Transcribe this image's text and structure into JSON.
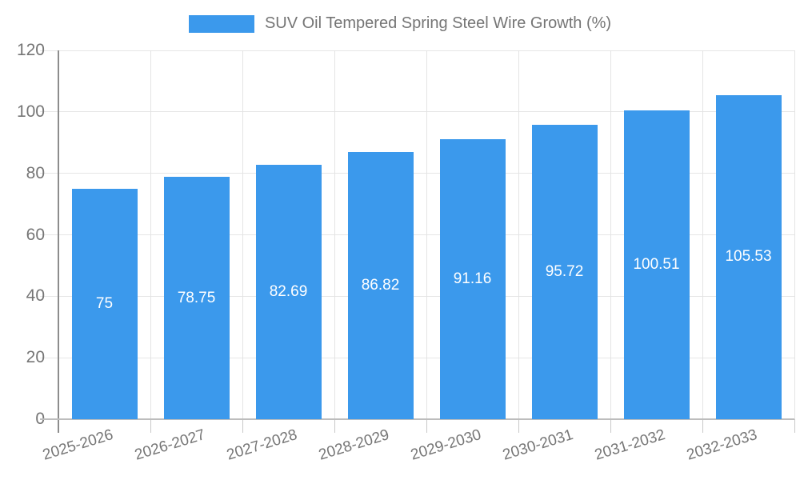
{
  "legend": {
    "series_label": "SUV Oil Tempered Spring Steel Wire Growth (%)",
    "swatch_color": "#3b99ec"
  },
  "chart_data": {
    "type": "bar",
    "title": "SUV Oil Tempered Spring Steel Wire Growth (%)",
    "categories": [
      "2025-2026",
      "2026-2027",
      "2027-2028",
      "2028-2029",
      "2029-2030",
      "2030-2031",
      "2031-2032",
      "2032-2033"
    ],
    "values": [
      75,
      78.75,
      82.69,
      86.82,
      91.16,
      95.72,
      100.51,
      105.53
    ],
    "value_labels": [
      "75",
      "78.75",
      "82.69",
      "86.82",
      "91.16",
      "95.72",
      "100.51",
      "105.53"
    ],
    "xlabel": "",
    "ylabel": "",
    "ylim": [
      0,
      120
    ],
    "yticks": [
      0,
      20,
      40,
      60,
      80,
      100,
      120
    ],
    "grid": true,
    "legend_position": "top-center",
    "bar_color": "#3b99ec",
    "value_label_color": "#ffffff",
    "axis_text_color": "#757575"
  }
}
